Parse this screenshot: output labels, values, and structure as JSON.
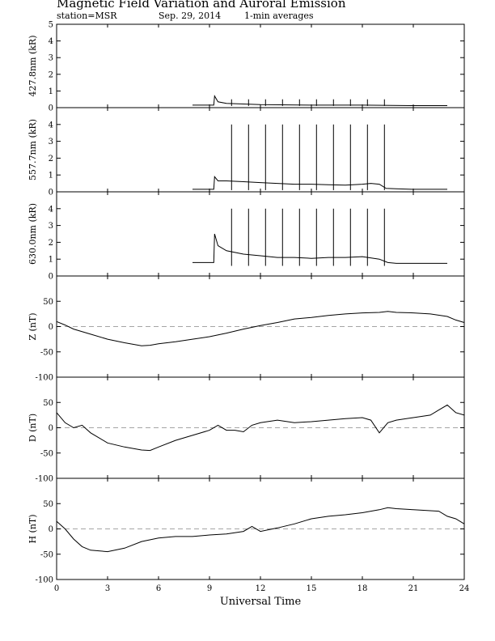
{
  "title": "Magnetic Field Variation and Auroral Emission",
  "subtitle": {
    "station": "station=MSR",
    "date": "Sep. 29, 2014",
    "averaging": "1-min averages"
  },
  "chart_data": [
    {
      "type": "line",
      "ylabel": "427.8nm (kR)",
      "ylim": [
        0,
        5
      ],
      "yticks": [
        0,
        1,
        2,
        3,
        4,
        5
      ],
      "zero_dashed": false,
      "series": [
        {
          "x": [
            8,
            9.25,
            9.3,
            9.5,
            10,
            12,
            15,
            18,
            21,
            23
          ],
          "y": [
            0.15,
            0.15,
            0.7,
            0.35,
            0.25,
            0.18,
            0.15,
            0.15,
            0.12,
            0.12
          ]
        }
      ],
      "spikes": {
        "x": [
          10.3,
          11.3,
          12.3,
          13.3,
          14.3,
          15.3,
          16.3,
          17.3,
          18.3,
          19.3
        ],
        "top": 0.5,
        "bottom": 0.1
      }
    },
    {
      "type": "line",
      "ylabel": "557.7nm (kR)",
      "ylim": [
        0,
        5
      ],
      "yticks": [
        0,
        1,
        2,
        3,
        4
      ],
      "zero_dashed": false,
      "series": [
        {
          "x": [
            8,
            9.25,
            9.3,
            9.5,
            10,
            11,
            12,
            13,
            14,
            15,
            16,
            17,
            18,
            18.5,
            19,
            19.4,
            20,
            21,
            22,
            23
          ],
          "y": [
            0.15,
            0.15,
            0.9,
            0.65,
            0.65,
            0.6,
            0.55,
            0.5,
            0.45,
            0.45,
            0.42,
            0.4,
            0.45,
            0.5,
            0.45,
            0.2,
            0.18,
            0.15,
            0.15,
            0.15
          ]
        }
      ],
      "spikes": {
        "x": [
          10.3,
          11.3,
          12.3,
          13.3,
          14.3,
          15.3,
          16.3,
          17.3,
          18.3,
          19.3
        ],
        "top": 4.0,
        "bottom": 0.1
      }
    },
    {
      "type": "line",
      "ylabel": "630.0nm (kR)",
      "ylim": [
        0,
        5
      ],
      "yticks": [
        0,
        1,
        2,
        3,
        4
      ],
      "zero_dashed": false,
      "series": [
        {
          "x": [
            8,
            9.25,
            9.3,
            9.5,
            10,
            11,
            12,
            13,
            14,
            15,
            16,
            17,
            18,
            19,
            19.5,
            20,
            21,
            22,
            23
          ],
          "y": [
            0.8,
            0.8,
            2.5,
            1.8,
            1.5,
            1.3,
            1.2,
            1.1,
            1.1,
            1.05,
            1.1,
            1.1,
            1.15,
            1.0,
            0.8,
            0.75,
            0.75,
            0.75,
            0.75
          ]
        }
      ],
      "spikes": {
        "x": [
          10.3,
          11.3,
          12.3,
          13.3,
          14.3,
          15.3,
          16.3,
          17.3,
          18.3,
          19.3
        ],
        "top": 4.0,
        "bottom": 0.6
      }
    },
    {
      "type": "line",
      "ylabel": "Z (nT)",
      "ylim": [
        -100,
        100
      ],
      "yticks": [
        -100,
        -50,
        0,
        50
      ],
      "zero_dashed": true,
      "series": [
        {
          "x": [
            0,
            0.5,
            1,
            2,
            3,
            4,
            5,
            5.5,
            6,
            7,
            8,
            9,
            10,
            11,
            12,
            13,
            14,
            15,
            16,
            17,
            18,
            19,
            19.5,
            20,
            21,
            22,
            23,
            23.5,
            24
          ],
          "y": [
            10,
            3,
            -5,
            -15,
            -25,
            -32,
            -38,
            -37,
            -34,
            -30,
            -25,
            -20,
            -13,
            -5,
            2,
            8,
            15,
            18,
            22,
            25,
            27,
            28,
            30,
            28,
            27,
            25,
            20,
            13,
            8
          ]
        }
      ]
    },
    {
      "type": "line",
      "ylabel": "D (nT)",
      "ylim": [
        -100,
        100
      ],
      "yticks": [
        -100,
        -50,
        0,
        50
      ],
      "zero_dashed": true,
      "series": [
        {
          "x": [
            0,
            0.5,
            1,
            1.5,
            2,
            3,
            4,
            5,
            5.5,
            6,
            7,
            8,
            9,
            9.5,
            10,
            10.5,
            11,
            11.5,
            12,
            13,
            14,
            15,
            16,
            17,
            18,
            18.5,
            19,
            19.5,
            20,
            21,
            22,
            22.5,
            23,
            23.5,
            24
          ],
          "y": [
            30,
            10,
            0,
            5,
            -10,
            -30,
            -38,
            -44,
            -45,
            -38,
            -25,
            -15,
            -5,
            5,
            -5,
            -5,
            -8,
            5,
            10,
            15,
            10,
            12,
            15,
            18,
            20,
            15,
            -10,
            10,
            15,
            20,
            25,
            35,
            45,
            30,
            25
          ]
        }
      ]
    },
    {
      "type": "line",
      "ylabel": "H (nT)",
      "ylim": [
        -100,
        100
      ],
      "yticks": [
        -100,
        -50,
        0,
        50
      ],
      "zero_dashed": true,
      "series": [
        {
          "x": [
            0,
            0.5,
            1,
            1.5,
            2,
            3,
            4,
            5,
            6,
            7,
            8,
            9,
            10,
            11,
            11.5,
            12,
            13,
            14,
            15,
            16,
            17,
            18,
            19,
            19.5,
            20,
            21,
            22,
            22.5,
            23,
            23.5,
            24
          ],
          "y": [
            15,
            0,
            -20,
            -35,
            -42,
            -45,
            -38,
            -25,
            -18,
            -15,
            -15,
            -12,
            -10,
            -5,
            5,
            -5,
            2,
            10,
            20,
            25,
            28,
            32,
            38,
            42,
            40,
            38,
            36,
            35,
            25,
            20,
            10
          ]
        }
      ]
    }
  ],
  "x_axis": {
    "label": "Universal Time",
    "ticks": [
      0,
      3,
      6,
      9,
      12,
      15,
      18,
      21,
      24
    ],
    "xlim": [
      0,
      24
    ]
  }
}
